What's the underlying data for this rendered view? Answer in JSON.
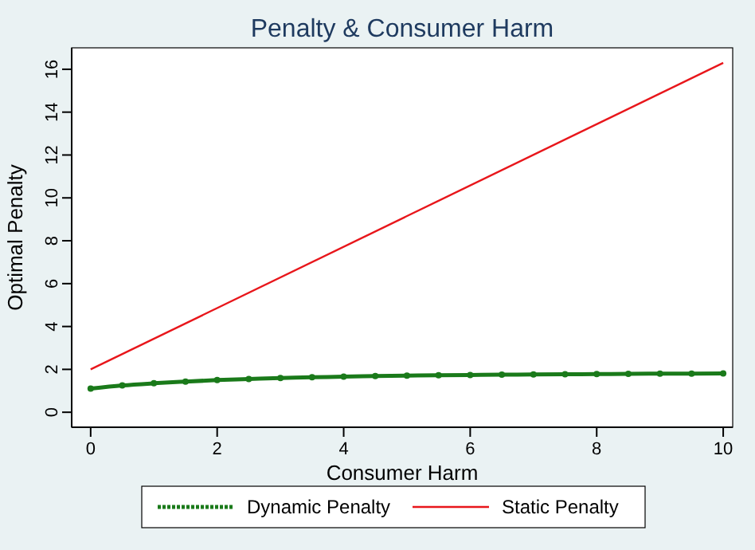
{
  "chart_data": {
    "type": "line",
    "title": "Penalty & Consumer Harm",
    "xlabel": "Consumer Harm",
    "ylabel": "Optimal Penalty",
    "xlim": [
      -0.3,
      10.15
    ],
    "ylim": [
      -0.7,
      17
    ],
    "xticks": [
      0,
      2,
      4,
      6,
      8,
      10
    ],
    "yticks": [
      0,
      2,
      4,
      6,
      8,
      10,
      12,
      14,
      16
    ],
    "legend": "bottom",
    "grid": false,
    "series": [
      {
        "name": "Dynamic Penalty",
        "color": "#1a7a1a",
        "marker": "circle",
        "x": [
          0,
          0.5,
          1,
          1.5,
          2,
          2.5,
          3,
          3.5,
          4,
          4.5,
          5,
          5.5,
          6,
          6.5,
          7,
          7.5,
          8,
          8.5,
          9,
          9.5,
          10
        ],
        "values": [
          1.1,
          1.25,
          1.35,
          1.43,
          1.5,
          1.55,
          1.6,
          1.63,
          1.66,
          1.69,
          1.71,
          1.73,
          1.74,
          1.75,
          1.76,
          1.77,
          1.78,
          1.79,
          1.8,
          1.8,
          1.81
        ]
      },
      {
        "name": "Static Penalty",
        "color": "#e8161b",
        "marker": "none",
        "x": [
          0,
          10
        ],
        "values": [
          2.0,
          16.3
        ]
      }
    ]
  }
}
